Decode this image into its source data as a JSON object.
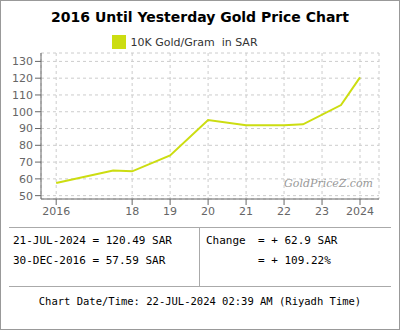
{
  "chart_data": {
    "type": "line",
    "title": "2016 Until Yesterday Gold Price Chart",
    "x": [
      2016,
      2017.5,
      2018,
      2019,
      2020,
      2021,
      2022,
      2022.5,
      2023.5,
      2024.0
    ],
    "series": [
      {
        "name": "10K Gold/Gram  in SAR",
        "color": "#ccdd11",
        "values": [
          57.5,
          65.0,
          64.5,
          74.0,
          95.0,
          92.0,
          92.0,
          92.5,
          104.0,
          120.5
        ]
      }
    ],
    "xlim": [
      2015.6,
      2024.5
    ],
    "xticks": [
      2016,
      {
        "value": 2018,
        "label": "18"
      },
      {
        "value": 2019,
        "label": "19"
      },
      {
        "value": 2020,
        "label": "20"
      },
      {
        "value": 2021,
        "label": "21"
      },
      {
        "value": 2022,
        "label": "22"
      },
      {
        "value": 2023,
        "label": "23"
      },
      2024
    ],
    "ylim": [
      48,
      135
    ],
    "yticks": [
      50,
      60,
      70,
      80,
      90,
      100,
      110,
      120,
      130
    ],
    "grid": true,
    "legend": "top",
    "annotations": [
      "GoldPriceZ.com",
      "21-JUL-2024 = 120.49 SAR",
      "30-DEC-2016 = 57.59 SAR",
      "Change",
      "= + 62.9 SAR",
      "= + 109.22%",
      "Chart Date/Time: 22-JUL-2024 02:39 AM (Riyadh Time)"
    ]
  }
}
